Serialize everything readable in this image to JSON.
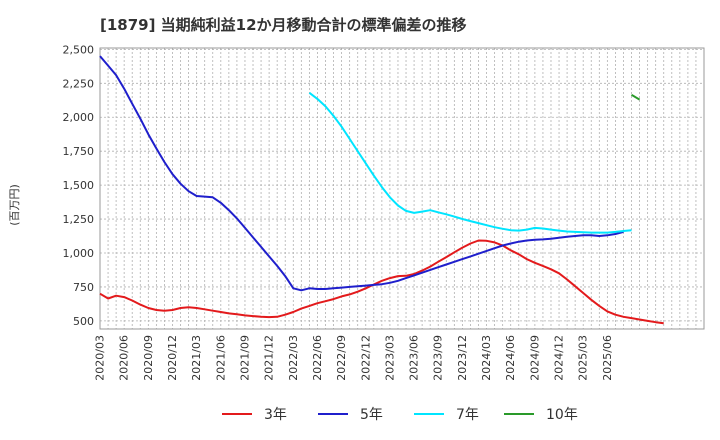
{
  "chart_data": {
    "type": "line",
    "title": "[1879]  当期純利益12か月移動合計の標準偏差の推移",
    "ylabel": "(百万円)",
    "xlabel": "",
    "ylim": [
      440,
      2510
    ],
    "yticks": [
      500,
      750,
      1000,
      1250,
      1500,
      1750,
      2000,
      2250,
      2500
    ],
    "ytick_labels": [
      "500",
      "750",
      "1,000",
      "1,250",
      "1,500",
      "1,750",
      "2,000",
      "2,250",
      "2,500"
    ],
    "x_start": "2020/03",
    "x_months": 75,
    "xtick_labels": [
      "2020/03",
      "2020/06",
      "2020/09",
      "2020/12",
      "2021/03",
      "2021/06",
      "2021/09",
      "2021/12",
      "2022/03",
      "2022/06",
      "2022/09",
      "2022/12",
      "2023/03",
      "2023/06",
      "2023/09",
      "2023/12",
      "2024/03",
      "2024/06",
      "2024/09",
      "2024/12",
      "2025/03",
      "2025/06"
    ],
    "grid": true,
    "legend_position": "bottom",
    "series": [
      {
        "name": "3年",
        "color": "#e31a1c",
        "start_index": 0,
        "values": [
          700,
          665,
          685,
          675,
          650,
          620,
          595,
          580,
          575,
          580,
          595,
          600,
          595,
          585,
          575,
          565,
          555,
          548,
          540,
          535,
          530,
          528,
          530,
          545,
          565,
          590,
          610,
          630,
          645,
          660,
          680,
          695,
          715,
          740,
          768,
          795,
          815,
          830,
          832,
          845,
          870,
          900,
          935,
          970,
          1005,
          1040,
          1070,
          1092,
          1090,
          1078,
          1055,
          1020,
          990,
          955,
          928,
          905,
          880,
          850,
          805,
          755,
          705,
          655,
          610,
          570,
          545,
          530,
          520,
          510,
          500,
          490,
          482
        ]
      },
      {
        "name": "5年",
        "color": "#1f1fcc",
        "start_index": 0,
        "values": [
          2450,
          2380,
          2310,
          2210,
          2100,
          1990,
          1875,
          1770,
          1670,
          1580,
          1510,
          1455,
          1420,
          1415,
          1410,
          1370,
          1315,
          1255,
          1185,
          1115,
          1045,
          975,
          905,
          830,
          740,
          725,
          740,
          735,
          735,
          740,
          745,
          750,
          755,
          760,
          765,
          770,
          780,
          795,
          815,
          835,
          855,
          875,
          895,
          915,
          935,
          955,
          975,
          995,
          1015,
          1035,
          1055,
          1070,
          1083,
          1092,
          1097,
          1100,
          1105,
          1112,
          1120,
          1125,
          1130,
          1130,
          1125,
          1130,
          1140,
          1155
        ]
      },
      {
        "name": "7年",
        "color": "#00e5ff",
        "start_index": 26,
        "values": [
          2180,
          2135,
          2080,
          2010,
          1930,
          1840,
          1750,
          1660,
          1570,
          1485,
          1410,
          1350,
          1310,
          1295,
          1305,
          1315,
          1300,
          1285,
          1268,
          1250,
          1235,
          1220,
          1205,
          1190,
          1178,
          1168,
          1165,
          1172,
          1185,
          1180,
          1172,
          1165,
          1158,
          1155,
          1152,
          1150,
          1150,
          1150,
          1155,
          1162,
          1168
        ]
      },
      {
        "name": "10年",
        "color": "#2a9a2a",
        "start_index": 66,
        "values": [
          2165,
          2130
        ]
      }
    ]
  }
}
